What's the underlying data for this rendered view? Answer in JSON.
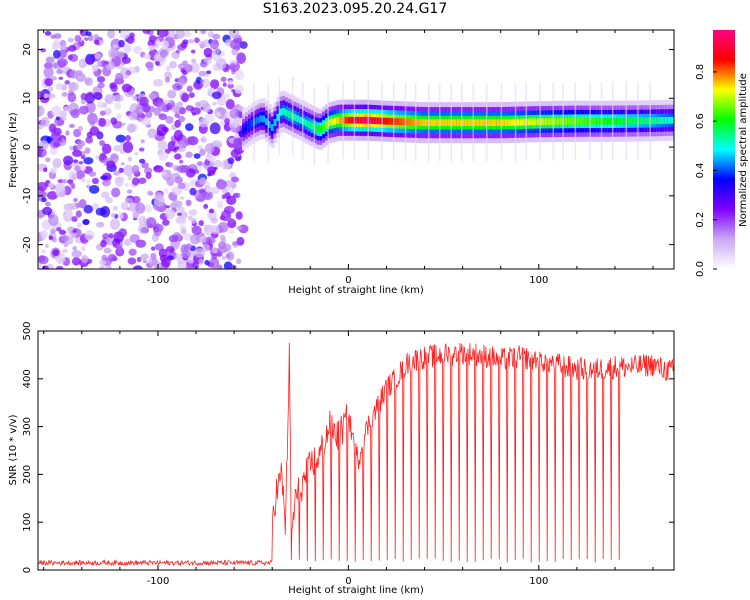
{
  "title": "S163.2023.095.20.24.G17",
  "chart_data": [
    {
      "type": "heatmap",
      "title": "S163.2023.095.20.24.G17",
      "xlabel": "Height of straight line (km)",
      "ylabel": "Frequency (Hz)",
      "xlim": [
        -163,
        171
      ],
      "ylim": [
        -25,
        24
      ],
      "xticks": [
        -100,
        0,
        100
      ],
      "xtick_labels": [
        "-100",
        "0",
        "100"
      ],
      "yticks": [
        -20,
        -10,
        0,
        10,
        20
      ],
      "ytick_labels": [
        "-20",
        "-10",
        "0",
        "10",
        "20"
      ],
      "colorbar": {
        "label": "Normalized spectral amplitude",
        "range": [
          0.0,
          0.97
        ],
        "ticks": [
          0.0,
          0.2,
          0.4,
          0.6,
          0.8
        ],
        "tick_labels": [
          "0.0",
          "0.2",
          "0.4",
          "0.6",
          "0.8"
        ],
        "colors": [
          "#ffffff",
          "#c8a8f2",
          "#8000ff",
          "#0000ff",
          "#00ffff",
          "#00ff00",
          "#ffff00",
          "#ff0000",
          "#ff0080"
        ]
      },
      "noise_region": {
        "x": [
          -163,
          -55
        ],
        "y": [
          -25,
          24
        ],
        "amplitude": [
          0.05,
          0.3
        ]
      },
      "signal_ridge": {
        "x": [
          -55,
          -50,
          -45,
          -40,
          -35,
          -30,
          -25,
          -20,
          -15,
          -10,
          -5,
          0,
          10,
          20,
          40,
          60,
          80,
          100,
          120,
          140,
          160,
          171
        ],
        "freq": [
          3.5,
          5.0,
          6.0,
          4.0,
          7.5,
          6.5,
          5.5,
          4.5,
          3.5,
          5.0,
          5.5,
          5.5,
          5.5,
          5.3,
          5.0,
          5.0,
          5.0,
          5.2,
          5.3,
          5.3,
          5.4,
          5.5
        ],
        "amplitude": [
          0.35,
          0.4,
          0.45,
          0.45,
          0.5,
          0.55,
          0.5,
          0.55,
          0.6,
          0.7,
          0.75,
          0.85,
          0.95,
          0.85,
          0.75,
          0.75,
          0.75,
          0.7,
          0.65,
          0.6,
          0.55,
          0.5
        ]
      }
    },
    {
      "type": "line",
      "xlabel": "Height of straight line (km)",
      "ylabel": "SNR (10 * v/v)",
      "xlim": [
        -163,
        171
      ],
      "ylim": [
        0,
        500
      ],
      "xticks": [
        -100,
        0,
        100
      ],
      "xtick_labels": [
        "-100",
        "0",
        "100"
      ],
      "yticks": [
        0,
        100,
        200,
        300,
        400,
        500
      ],
      "ytick_labels": [
        "0",
        "100",
        "200",
        "300",
        "400",
        "500"
      ],
      "color": "#ff2020",
      "series": [
        {
          "x": [
            -163,
            -150,
            -120,
            -100,
            -80,
            -60,
            -45,
            -40,
            -38,
            -35,
            -33,
            -31,
            -30,
            -28,
            -25,
            -20,
            -15,
            -10,
            -5,
            0,
            5,
            10,
            15,
            20,
            25,
            30,
            35,
            40,
            50,
            60,
            70,
            80,
            90,
            100,
            110,
            120,
            130,
            140,
            150,
            160,
            165,
            171
          ],
          "values": [
            10,
            12,
            11,
            13,
            10,
            12,
            15,
            110,
            160,
            200,
            90,
            455,
            60,
            150,
            170,
            220,
            240,
            300,
            280,
            320,
            230,
            300,
            340,
            380,
            400,
            430,
            440,
            445,
            450,
            455,
            450,
            440,
            445,
            440,
            430,
            420,
            420,
            425,
            425,
            430,
            420,
            415
          ]
        }
      ]
    }
  ]
}
